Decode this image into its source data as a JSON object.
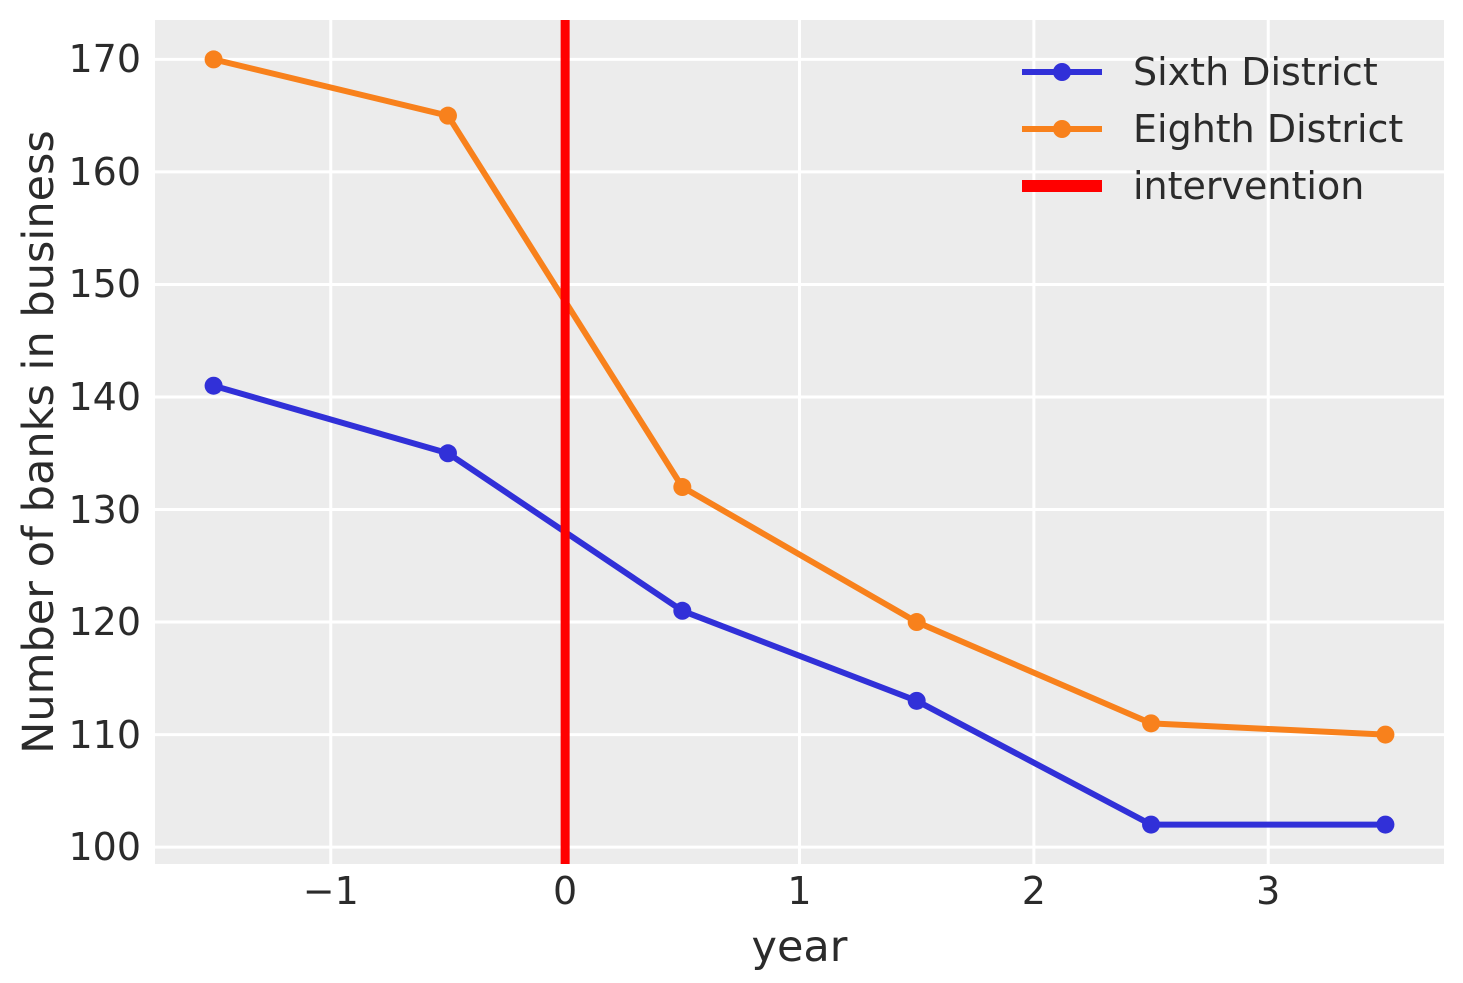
{
  "figure": {
    "background": "#ffffff",
    "plot_background": "#ececec",
    "gridline_color": "#ffffff",
    "text_color": "#2b2b2b"
  },
  "chart_data": {
    "type": "line",
    "xlabel": "year",
    "ylabel": "Number of banks in business",
    "xlim": [
      -1.75,
      3.75
    ],
    "ylim": [
      98.5,
      173.5
    ],
    "grid": true,
    "xticks": [
      -1,
      0,
      1,
      2,
      3
    ],
    "xtick_labels": [
      "−1",
      "0",
      "1",
      "2",
      "3"
    ],
    "yticks": [
      100,
      110,
      120,
      130,
      140,
      150,
      160,
      170
    ],
    "ytick_labels": [
      "100",
      "110",
      "120",
      "130",
      "140",
      "150",
      "160",
      "170"
    ],
    "x": [
      -1.5,
      -0.5,
      0.5,
      1.5,
      2.5,
      3.5
    ],
    "series": [
      {
        "name": "Sixth District",
        "color": "#3130d8",
        "marker": "circle",
        "values": [
          141,
          135,
          121,
          113,
          102,
          102
        ]
      },
      {
        "name": "Eighth District",
        "color": "#f8811c",
        "marker": "circle",
        "values": [
          170,
          165,
          132,
          120,
          111,
          110
        ]
      }
    ],
    "vline": {
      "name": "intervention",
      "x": 0,
      "color": "#ff0000"
    },
    "legend": {
      "position": "upper right",
      "entries": [
        "Sixth District",
        "Eighth District",
        "intervention"
      ]
    }
  }
}
